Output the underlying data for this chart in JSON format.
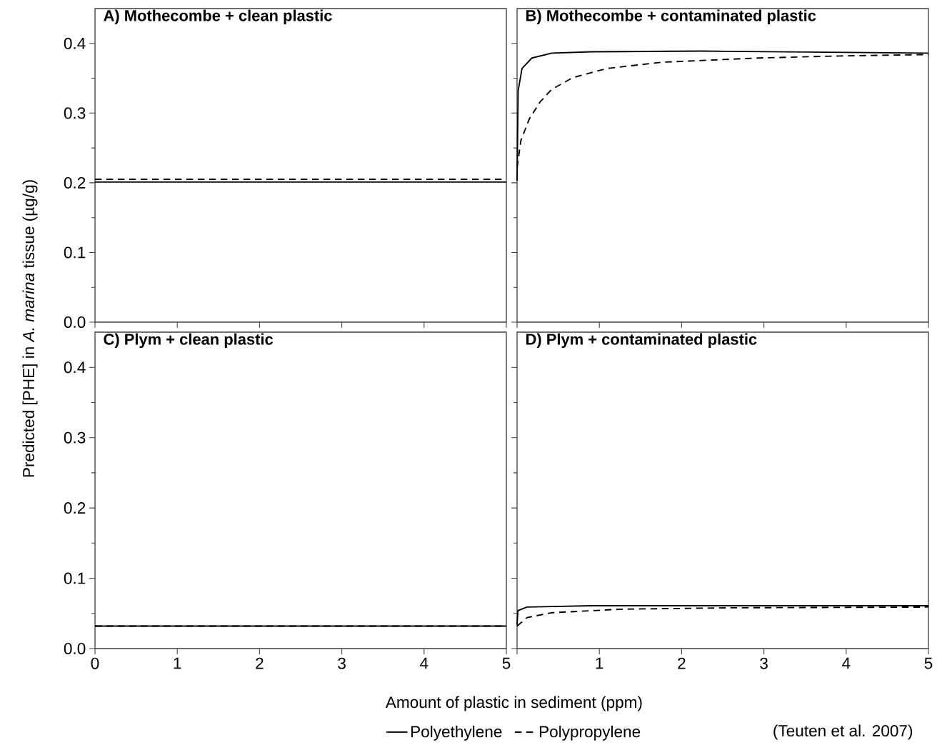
{
  "chart_data": [
    {
      "type": "line",
      "title": "A) Mothecombe + clean plastic",
      "ylabel": "Predicted [PHE] in *A. marina* tissue (µg/g)",
      "xlim": [
        0,
        5
      ],
      "ylim": [
        0,
        0.45
      ],
      "xticks": [
        {
          "value": 0,
          "label": null
        },
        {
          "value": 1,
          "label": null
        },
        {
          "value": 2,
          "label": null
        },
        {
          "value": 3,
          "label": null
        },
        {
          "value": 4,
          "label": null
        },
        {
          "value": 5,
          "label": null
        }
      ],
      "yticks": [
        {
          "value": 0,
          "label": "0.0"
        },
        0.1,
        0.2,
        0.3,
        0.4
      ],
      "tick_labels": "y",
      "series": [
        {
          "color": "#000000",
          "line_style": "solid",
          "x": [
            0,
            5
          ],
          "values": [
            0.201,
            0.201
          ]
        },
        {
          "color": "#000000",
          "line_style": "dashed",
          "x": [
            0,
            5
          ],
          "values": [
            0.205,
            0.205
          ]
        }
      ]
    },
    {
      "type": "line",
      "title": "B) Mothecombe + contaminated plastic",
      "xlim": [
        0,
        5
      ],
      "ylim": [
        0,
        0.45
      ],
      "xticks": [
        0,
        1,
        2,
        3,
        4,
        5
      ],
      "yticks": [
        0,
        0.1,
        0.2,
        0.3,
        0.4
      ],
      "tick_labels": false,
      "series": [
        {
          "color": "#000000",
          "line_style": "solid",
          "x": [
            0,
            0.013,
            0.06,
            0.18,
            0.42,
            0.91,
            2.25,
            5
          ],
          "values": [
            0.203,
            0.332,
            0.364,
            0.379,
            0.386,
            0.388,
            0.389,
            0.386
          ]
        },
        {
          "color": "#000000",
          "line_style": "dashed",
          "x": [
            0,
            0.047,
            0.15,
            0.28,
            0.42,
            0.68,
            1.09,
            1.76,
            2.92,
            3.92,
            5
          ],
          "values": [
            0.222,
            0.261,
            0.292,
            0.316,
            0.334,
            0.351,
            0.364,
            0.373,
            0.379,
            0.382,
            0.384
          ]
        }
      ]
    },
    {
      "type": "line",
      "title": "C) Plym + clean plastic",
      "xlabel": "Amount of plastic in sediment (ppm)",
      "xlim": [
        0,
        5
      ],
      "ylim": [
        0,
        0.45
      ],
      "xticks": [
        0,
        1,
        2,
        3,
        4,
        5
      ],
      "yticks": [
        {
          "value": 0,
          "label": "0.0"
        },
        0.1,
        0.2,
        0.3,
        0.4
      ],
      "series": [
        {
          "color": "#000000",
          "line_style": "solid",
          "x": [
            0,
            5
          ],
          "values": [
            0.032,
            0.032
          ]
        },
        {
          "color": "#000000",
          "line_style": "dashed",
          "x": [
            0,
            5
          ],
          "values": [
            0.032,
            0.032
          ]
        }
      ]
    },
    {
      "type": "line",
      "title": "D) Plym + contaminated plastic",
      "xlim": [
        0,
        5
      ],
      "ylim": [
        0,
        0.45
      ],
      "xticks": [
        {
          "value": 0,
          "label": null
        },
        1,
        2,
        3,
        4,
        5
      ],
      "yticks": [
        0,
        0.1,
        0.2,
        0.3,
        0.4
      ],
      "tick_labels": "x",
      "legend": "bottom",
      "annotations": [
        "(Teuten et al. 2007)"
      ],
      "series": [
        {
          "name": "Polyethylene",
          "color": "#000000",
          "line_style": "solid",
          "x": [
            0,
            0.01,
            0.12,
            0.91,
            5
          ],
          "values": [
            0.034,
            0.054,
            0.059,
            0.061,
            0.061
          ]
        },
        {
          "name": "Polypropylene",
          "color": "#000000",
          "line_style": "dashed",
          "x": [
            0,
            0.12,
            0.42,
            1.26,
            2.6,
            5
          ],
          "values": [
            0.032,
            0.044,
            0.051,
            0.056,
            0.058,
            0.059
          ]
        }
      ]
    }
  ]
}
